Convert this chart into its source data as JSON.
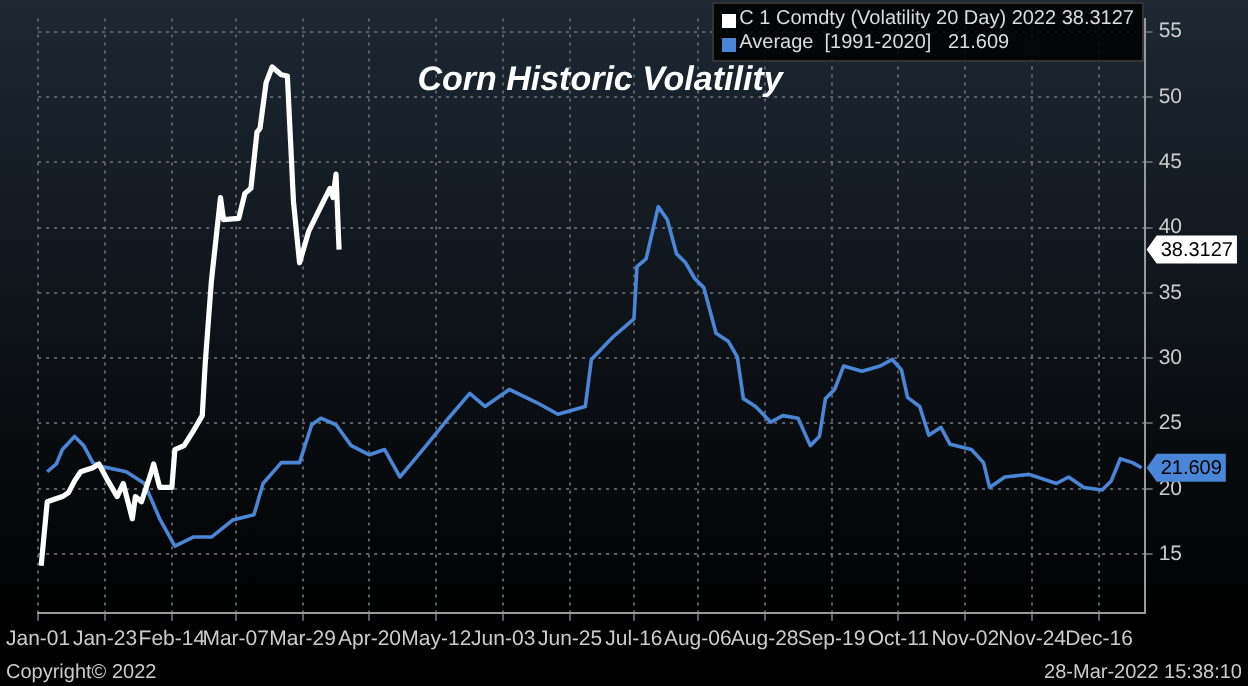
{
  "chart_data": {
    "type": "line",
    "title": "Corn Historic Volatility",
    "annotations": [
      "Copyright© 2022",
      "28-Mar-2022 15:38:10",
      "38.3127",
      "21.609"
    ],
    "xlim": [
      "--01-01",
      "--12-31"
    ],
    "xticks": [
      {
        "value": "--01-01",
        "label": "Jan-01"
      },
      {
        "value": "--01-23",
        "label": "Jan-23"
      },
      {
        "value": "--02-14",
        "label": "Feb-14"
      },
      {
        "value": "--03-07",
        "label": "Mar-07"
      },
      {
        "value": "--03-29",
        "label": "Mar-29"
      },
      {
        "value": "--04-20",
        "label": "Apr-20"
      },
      {
        "value": "--05-12",
        "label": "May-12"
      },
      {
        "value": "--06-03",
        "label": "Jun-03"
      },
      {
        "value": "--06-25",
        "label": "Jun-25"
      },
      {
        "value": "--07-16",
        "label": "Jul-16"
      },
      {
        "value": "--08-06",
        "label": "Aug-06"
      },
      {
        "value": "--08-28",
        "label": "Aug-28"
      },
      {
        "value": "--09-19",
        "label": "Sep-19"
      },
      {
        "value": "--10-11",
        "label": "Oct-11"
      },
      {
        "value": "--11-02",
        "label": "Nov-02"
      },
      {
        "value": "--11-24",
        "label": "Nov-24"
      },
      {
        "value": "--12-16",
        "label": "Dec-16"
      }
    ],
    "ylim": [
      10.5,
      56
    ],
    "yticks": [
      15,
      20,
      25,
      30,
      35,
      40,
      45,
      50,
      55
    ],
    "grid": true,
    "legend": "top right",
    "marker": "none",
    "line_style": "solid",
    "series": [
      {
        "name": "C 1 Comdty (Volatility 20 Day) 2022 38.3127",
        "color": "#ffffff",
        "x": [
          "--01-02",
          "--01-04",
          "--01-09",
          "--01-11",
          "--01-13",
          "--01-15",
          "--01-19",
          "--01-21",
          "--01-24",
          "--01-27",
          "--01-29",
          "--02-01",
          "--02-02",
          "--02-04",
          "--02-07",
          "--02-08",
          "--02-10",
          "--02-14",
          "--02-15",
          "--02-18",
          "--02-21",
          "--02-24",
          "--02-25",
          "--02-27",
          "--03-02",
          "--03-03",
          "--03-08",
          "--03-10",
          "--03-12",
          "--03-14",
          "--03-15",
          "--03-17",
          "--03-19",
          "--03-22",
          "--03-24",
          "--03-26",
          "--03-28",
          "--03-31",
          "--04-04",
          "--04-07",
          "--04-08",
          "--04-09",
          "--04-10"
        ],
        "values": [
          14.1,
          19.0,
          19.4,
          19.7,
          20.6,
          21.3,
          21.6,
          21.9,
          20.6,
          19.4,
          20.4,
          17.7,
          19.4,
          19.0,
          21.1,
          21.9,
          20.1,
          20.1,
          23.0,
          23.3,
          24.4,
          25.6,
          29.7,
          35.9,
          42.3,
          40.6,
          40.7,
          42.6,
          43.0,
          47.3,
          47.6,
          51.1,
          52.3,
          51.7,
          51.6,
          42.0,
          37.3,
          39.7,
          41.6,
          43.0,
          42.3,
          44.1,
          38.3127
        ]
      },
      {
        "name": "Average  [1991-2020]   21.609",
        "color": "#4a86d8",
        "x": [
          "--01-04",
          "--01-07",
          "--01-09",
          "--01-13",
          "--01-16",
          "--01-19",
          "--01-22",
          "--01-30",
          "--02-05",
          "--02-10",
          "--02-15",
          "--02-21",
          "--02-27",
          "--03-06",
          "--03-13",
          "--03-16",
          "--03-22",
          "--03-28",
          "--04-01",
          "--04-04",
          "--04-09",
          "--04-14",
          "--04-20",
          "--04-25",
          "--04-30",
          "--05-04",
          "--05-09",
          "--05-16",
          "--05-23",
          "--05-28",
          "--06-05",
          "--06-14",
          "--06-21",
          "--06-30",
          "--07-02",
          "--07-09",
          "--07-16",
          "--07-17",
          "--07-20",
          "--07-24",
          "--07-27",
          "--07-30",
          "--08-02",
          "--08-05",
          "--08-08",
          "--08-12",
          "--08-14",
          "--08-16",
          "--08-19",
          "--08-21",
          "--08-25",
          "--08-30",
          "--09-03",
          "--09-08",
          "--09-12",
          "--09-15",
          "--09-17",
          "--09-20",
          "--09-23",
          "--09-29",
          "--10-05",
          "--10-09",
          "--10-12",
          "--10-14",
          "--10-18",
          "--10-21",
          "--10-25",
          "--10-28",
          "--11-04",
          "--11-08",
          "--11-10",
          "--11-15",
          "--11-23",
          "--12-02",
          "--12-06",
          "--12-11",
          "--12-17",
          "--12-20",
          "--12-23",
          "--12-27",
          "--12-30"
        ],
        "values": [
          21.3,
          21.9,
          23.0,
          24.0,
          23.3,
          22.0,
          21.7,
          21.3,
          20.4,
          17.7,
          15.6,
          16.3,
          16.3,
          17.6,
          18.0,
          20.4,
          22.0,
          22.0,
          24.9,
          25.4,
          24.9,
          23.3,
          22.6,
          23.0,
          20.9,
          22.0,
          23.4,
          25.4,
          27.3,
          26.3,
          27.6,
          26.6,
          25.7,
          26.3,
          29.9,
          31.6,
          33.0,
          37.0,
          37.6,
          41.6,
          40.6,
          38.0,
          37.3,
          36.1,
          35.4,
          31.9,
          31.6,
          31.3,
          30.1,
          26.9,
          26.3,
          25.1,
          25.6,
          25.4,
          23.3,
          24.0,
          26.9,
          27.6,
          29.4,
          29.0,
          29.4,
          29.9,
          29.1,
          27.0,
          26.3,
          24.1,
          24.7,
          23.4,
          23.0,
          22.0,
          20.1,
          20.9,
          21.1,
          20.4,
          20.9,
          20.1,
          19.9,
          20.6,
          22.3,
          22.0,
          21.609
        ]
      }
    ]
  }
}
